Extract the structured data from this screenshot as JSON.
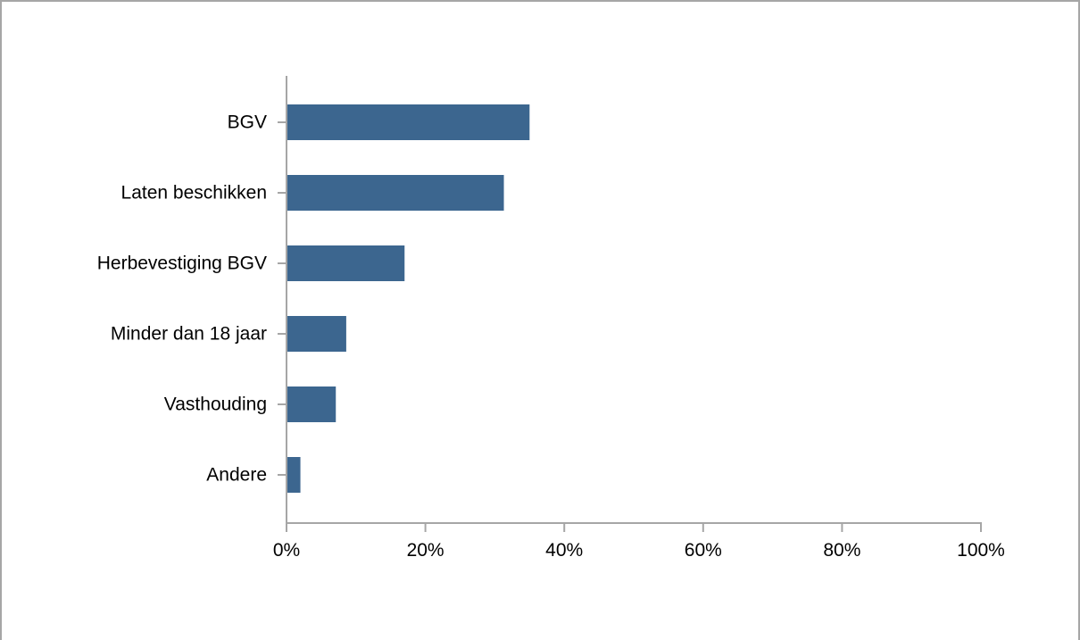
{
  "chart_data": {
    "type": "bar",
    "orientation": "horizontal",
    "title": "",
    "xlabel": "",
    "ylabel": "",
    "categories": [
      "BGV",
      "Laten beschikken",
      "Herbevestiging BGV",
      "Minder dan 18 jaar",
      "Vasthouding",
      "Andere"
    ],
    "values": [
      35,
      31.3,
      17,
      8.6,
      7.1,
      2
    ],
    "value_unit": "%",
    "xlim": [
      0,
      100
    ],
    "x_ticks": [
      0,
      20,
      40,
      60,
      80,
      100
    ],
    "x_tick_labels": [
      "0%",
      "20%",
      "40%",
      "60%",
      "80%",
      "100%"
    ],
    "grid": false,
    "legend": "none",
    "colors": {
      "bar": "#3c668f",
      "axis": "#a6a6a6",
      "frame": "#a6a6a6",
      "text": "#000000"
    }
  }
}
